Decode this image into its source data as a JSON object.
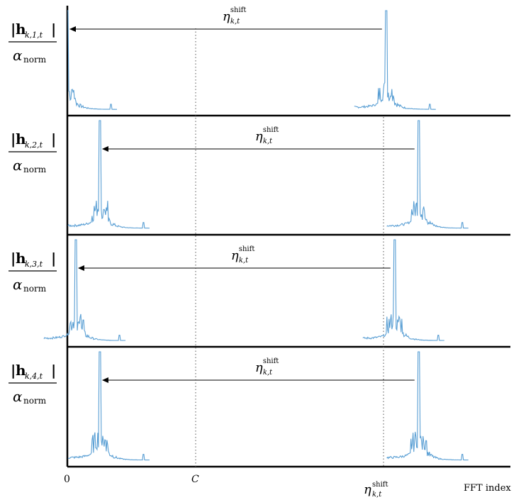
{
  "chart_data": {
    "type": "line",
    "title": "",
    "xlabel": "FFT index",
    "ylabel": "",
    "x_ticks": [
      {
        "label": "0",
        "position": 0,
        "style": "plain"
      },
      {
        "label": "C",
        "position": 0.29,
        "style": "italic"
      },
      {
        "label": "η",
        "sup": "shift",
        "sub": "k,t",
        "position": 0.715,
        "style": "italic"
      }
    ],
    "xlim": [
      0,
      1
    ],
    "panels": [
      {
        "label_base": "h",
        "label_sub": "k,1,t",
        "denominator": "α",
        "denominator_sub": "norm",
        "peak_left": 0.0,
        "peak_right": 0.715,
        "arrow_label": "η",
        "arrow_sup": "shift",
        "arrow_sub": "k,t"
      },
      {
        "label_base": "h",
        "label_sub": "k,2,t",
        "denominator": "α",
        "denominator_sub": "norm",
        "peak_left": 0.073,
        "peak_right": 0.788,
        "arrow_label": "η",
        "arrow_sup": "shift",
        "arrow_sub": "k,t"
      },
      {
        "label_base": "h",
        "label_sub": "k,3,t",
        "denominator": "α",
        "denominator_sub": "norm",
        "peak_left": 0.019,
        "peak_right": 0.734,
        "arrow_label": "η",
        "arrow_sup": "shift",
        "arrow_sub": "k,t"
      },
      {
        "label_base": "h",
        "label_sub": "k,4,t",
        "denominator": "α",
        "denominator_sub": "norm",
        "peak_left": 0.073,
        "peak_right": 0.788,
        "arrow_label": "η",
        "arrow_sup": "shift",
        "arrow_sub": "k,t"
      }
    ],
    "line_color": "#5a9fd4",
    "line_color_light": "#a9cdea"
  }
}
